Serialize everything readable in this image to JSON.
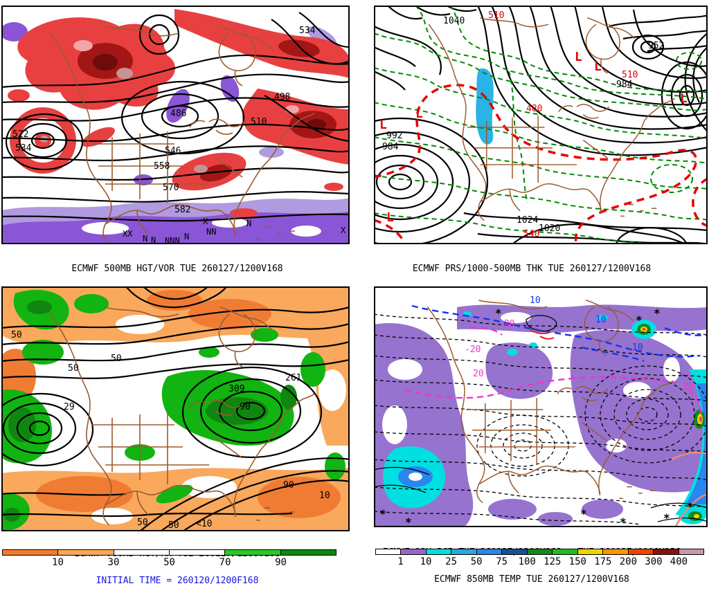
{
  "palette": {
    "caption_blue": "#1414e6",
    "geo_brown": "#9b5a2e",
    "vort_red": "#e84040",
    "vort_dark_red": "#a31616",
    "vort_deep_red": "#6e0b0b",
    "vort_pink": "#f3a6a6",
    "vort_mauve": "#c49494",
    "neg_vort_purple": "#8a55d6",
    "neg_vort_purple_light": "#b09ae0",
    "thickness_green": "#008a00",
    "thickness_red": "#e60000",
    "cyan_patch": "#28b4e6",
    "rh_orange_dark": "#f07c33",
    "rh_orange_light": "#f9a85c",
    "rh_green": "#11b411",
    "rh_green_dark": "#0f860f",
    "pcp_purple": "#9673cf",
    "pcp_cyan": "#00e0e0",
    "temp_blue": "#1133ee",
    "temp_magenta": "#f233cc",
    "temp_salmon": "#f08878"
  },
  "panels": {
    "tl": {
      "caption": "ECMWF 500MB HGT/VOR TUE 260127/1200V168",
      "initial_time": "INITIAL TIME = 260120/1200F168",
      "labels": [
        "534",
        "522",
        "534",
        "546",
        "558",
        "570",
        "582",
        "486",
        "498",
        "510"
      ],
      "markers": [
        "XX",
        "N",
        "N",
        "NNN",
        "N",
        "NN",
        "X",
        "N",
        "X"
      ]
    },
    "tr": {
      "caption": "ECMWF PRS/1000-500MB THK TUE 260127/1200V168",
      "initial_time": "INITIAL TIME = 260120/1200F168",
      "black_labels": [
        "1040",
        "952",
        "984",
        "992",
        "984",
        "1024",
        "1020"
      ],
      "red_labels": [
        "510",
        "510",
        "480",
        "540"
      ],
      "low_symbol": "L"
    },
    "bl": {
      "caption": "ECMWF 700MB HGT/RH TUE 260127/1200V168",
      "initial_time": "INITIAL TIME = 260120/1200F168",
      "labels": [
        "50",
        "50",
        "50",
        "261",
        "309",
        "29",
        "90",
        "90",
        "10",
        "50",
        "50",
        "<10"
      ]
    },
    "br": {
      "caption_line1": "ECMWF 12H PCP TUE 260127/1200V168 : TUE 260127/0000V156",
      "caption_line2": "ECMWF 850MB TEMP TUE 260127/1200V168",
      "blue_labels": [
        "10",
        "10",
        "10"
      ],
      "magenta_labels": [
        "-20",
        "-20",
        "20",
        "30"
      ],
      "snow_symbol": "*"
    }
  },
  "colorbar_rh": {
    "labels": [
      "10",
      "30",
      "50",
      "70",
      "90"
    ],
    "colors": [
      "#f07c33",
      "#f9a85c",
      "#ffffff",
      "#ffffff",
      "#2dc62d",
      "#0f860f"
    ]
  },
  "colorbar_pcp": {
    "labels": [
      "1",
      "10",
      "25",
      "50",
      "75",
      "100",
      "125",
      "150",
      "175",
      "200",
      "300",
      "400"
    ],
    "colors": [
      "#ffffff",
      "#9966cc",
      "#00e0e0",
      "#29a8dd",
      "#2986ee",
      "#1b4f94",
      "#0f8a1e",
      "#22bb22",
      "#f2d200",
      "#ff9500",
      "#ee4400",
      "#8b1010",
      "#c799aa"
    ]
  }
}
